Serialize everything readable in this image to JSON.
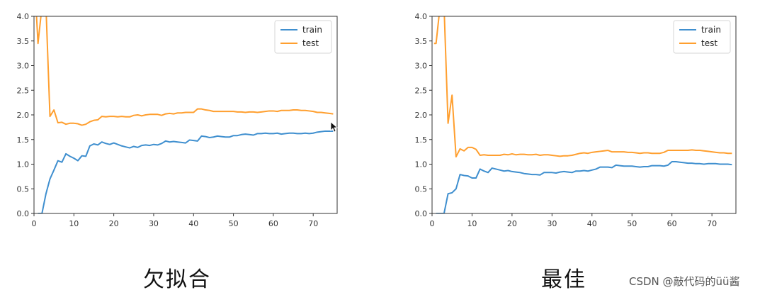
{
  "chart_data": [
    {
      "type": "line",
      "xlim": [
        0,
        76
      ],
      "ylim": [
        0,
        4.0
      ],
      "x_ticks": [
        0,
        10,
        20,
        30,
        40,
        50,
        60,
        70
      ],
      "y_ticks": [
        "0.0",
        "0.5",
        "1.0",
        "1.5",
        "2.0",
        "2.5",
        "3.0",
        "3.5",
        "4.0"
      ],
      "legend_position": "top-right",
      "caption": "欠拟合",
      "series": [
        {
          "name": "train",
          "color": "#3f8fcf",
          "x": [
            1,
            2,
            3,
            4,
            5,
            6,
            7,
            8,
            9,
            10,
            11,
            12,
            13,
            14,
            15,
            16,
            17,
            18,
            19,
            20,
            21,
            22,
            23,
            24,
            25,
            26,
            27,
            28,
            29,
            30,
            31,
            32,
            33,
            34,
            35,
            36,
            37,
            38,
            39,
            40,
            41,
            42,
            43,
            44,
            45,
            46,
            47,
            48,
            49,
            50,
            51,
            52,
            53,
            54,
            55,
            56,
            57,
            58,
            59,
            60,
            61,
            62,
            63,
            64,
            65,
            66,
            67,
            68,
            69,
            70,
            71,
            72,
            73,
            74,
            75
          ],
          "values": [
            0.0,
            0.0,
            0.4,
            0.7,
            0.88,
            1.07,
            1.04,
            1.21,
            1.16,
            1.12,
            1.07,
            1.17,
            1.16,
            1.37,
            1.41,
            1.39,
            1.45,
            1.42,
            1.4,
            1.43,
            1.4,
            1.37,
            1.35,
            1.33,
            1.36,
            1.34,
            1.38,
            1.39,
            1.38,
            1.4,
            1.39,
            1.42,
            1.47,
            1.45,
            1.46,
            1.45,
            1.44,
            1.43,
            1.49,
            1.48,
            1.47,
            1.57,
            1.56,
            1.54,
            1.55,
            1.57,
            1.56,
            1.55,
            1.55,
            1.58,
            1.58,
            1.6,
            1.61,
            1.6,
            1.59,
            1.62,
            1.62,
            1.63,
            1.62,
            1.62,
            1.63,
            1.61,
            1.62,
            1.63,
            1.63,
            1.62,
            1.62,
            1.63,
            1.62,
            1.63,
            1.65,
            1.66,
            1.67,
            1.67,
            1.67
          ]
        },
        {
          "name": "test",
          "color": "#ff9f2f",
          "x": [
            0.5,
            1,
            2,
            3,
            4,
            5,
            6,
            7,
            8,
            9,
            10,
            11,
            12,
            13,
            14,
            15,
            16,
            17,
            18,
            19,
            20,
            21,
            22,
            23,
            24,
            25,
            26,
            27,
            28,
            29,
            30,
            31,
            32,
            33,
            34,
            35,
            36,
            37,
            38,
            39,
            40,
            41,
            42,
            43,
            44,
            45,
            46,
            47,
            48,
            49,
            50,
            51,
            52,
            53,
            54,
            55,
            56,
            57,
            58,
            59,
            60,
            61,
            62,
            63,
            64,
            65,
            66,
            67,
            68,
            69,
            70,
            71,
            72,
            73,
            74,
            75
          ],
          "values": [
            4.2,
            3.45,
            4.2,
            4.2,
            1.97,
            2.1,
            1.84,
            1.85,
            1.81,
            1.83,
            1.83,
            1.82,
            1.79,
            1.81,
            1.86,
            1.89,
            1.9,
            1.97,
            1.96,
            1.97,
            1.97,
            1.96,
            1.97,
            1.96,
            1.96,
            1.99,
            2.0,
            1.98,
            2.0,
            2.01,
            2.01,
            2.01,
            1.99,
            2.02,
            2.03,
            2.02,
            2.04,
            2.04,
            2.05,
            2.05,
            2.05,
            2.12,
            2.12,
            2.1,
            2.09,
            2.07,
            2.07,
            2.07,
            2.07,
            2.07,
            2.07,
            2.06,
            2.06,
            2.05,
            2.06,
            2.06,
            2.05,
            2.06,
            2.07,
            2.08,
            2.08,
            2.07,
            2.09,
            2.09,
            2.09,
            2.1,
            2.1,
            2.09,
            2.09,
            2.08,
            2.07,
            2.05,
            2.05,
            2.04,
            2.03,
            2.02
          ]
        }
      ]
    },
    {
      "type": "line",
      "xlim": [
        0,
        76
      ],
      "ylim": [
        0,
        4.0
      ],
      "x_ticks": [
        0,
        10,
        20,
        30,
        40,
        50,
        60,
        70
      ],
      "y_ticks": [
        "0.0",
        "0.5",
        "1.0",
        "1.5",
        "2.0",
        "2.5",
        "3.0",
        "3.5",
        "4.0"
      ],
      "legend_position": "top-right",
      "caption": "最佳",
      "series": [
        {
          "name": "train",
          "color": "#3f8fcf",
          "x": [
            1,
            2,
            3,
            4,
            5,
            6,
            7,
            8,
            9,
            10,
            11,
            12,
            13,
            14,
            15,
            16,
            17,
            18,
            19,
            20,
            21,
            22,
            23,
            24,
            25,
            26,
            27,
            28,
            29,
            30,
            31,
            32,
            33,
            34,
            35,
            36,
            37,
            38,
            39,
            40,
            41,
            42,
            43,
            44,
            45,
            46,
            47,
            48,
            49,
            50,
            51,
            52,
            53,
            54,
            55,
            56,
            57,
            58,
            59,
            60,
            61,
            62,
            63,
            64,
            65,
            66,
            67,
            68,
            69,
            70,
            71,
            72,
            73,
            74,
            75
          ],
          "values": [
            0.0,
            0.0,
            0.0,
            0.4,
            0.42,
            0.5,
            0.79,
            0.77,
            0.76,
            0.72,
            0.72,
            0.9,
            0.86,
            0.83,
            0.92,
            0.9,
            0.88,
            0.86,
            0.87,
            0.85,
            0.84,
            0.83,
            0.81,
            0.8,
            0.79,
            0.79,
            0.78,
            0.83,
            0.83,
            0.83,
            0.82,
            0.84,
            0.85,
            0.84,
            0.83,
            0.86,
            0.86,
            0.87,
            0.86,
            0.88,
            0.9,
            0.94,
            0.94,
            0.94,
            0.93,
            0.98,
            0.97,
            0.96,
            0.96,
            0.96,
            0.95,
            0.94,
            0.95,
            0.95,
            0.97,
            0.97,
            0.97,
            0.96,
            0.98,
            1.05,
            1.05,
            1.04,
            1.03,
            1.02,
            1.02,
            1.01,
            1.01,
            1.0,
            1.01,
            1.01,
            1.01,
            1.0,
            1.0,
            1.0,
            0.99
          ]
        },
        {
          "name": "test",
          "color": "#ff9f2f",
          "x": [
            0.5,
            1,
            2,
            3,
            4,
            5,
            6,
            7,
            8,
            9,
            10,
            11,
            12,
            13,
            14,
            15,
            16,
            17,
            18,
            19,
            20,
            21,
            22,
            23,
            24,
            25,
            26,
            27,
            28,
            29,
            30,
            31,
            32,
            33,
            34,
            35,
            36,
            37,
            38,
            39,
            40,
            41,
            42,
            43,
            44,
            45,
            46,
            47,
            48,
            49,
            50,
            51,
            52,
            53,
            54,
            55,
            56,
            57,
            58,
            59,
            60,
            61,
            62,
            63,
            64,
            65,
            66,
            67,
            68,
            69,
            70,
            71,
            72,
            73,
            74,
            75
          ],
          "values": [
            3.45,
            3.45,
            4.2,
            4.2,
            1.83,
            2.4,
            1.15,
            1.31,
            1.27,
            1.34,
            1.34,
            1.3,
            1.18,
            1.19,
            1.18,
            1.18,
            1.18,
            1.18,
            1.2,
            1.19,
            1.21,
            1.19,
            1.2,
            1.2,
            1.19,
            1.19,
            1.2,
            1.18,
            1.19,
            1.19,
            1.18,
            1.17,
            1.16,
            1.17,
            1.17,
            1.18,
            1.2,
            1.22,
            1.23,
            1.22,
            1.24,
            1.25,
            1.26,
            1.27,
            1.28,
            1.25,
            1.25,
            1.25,
            1.25,
            1.24,
            1.24,
            1.23,
            1.22,
            1.23,
            1.23,
            1.22,
            1.22,
            1.22,
            1.24,
            1.28,
            1.28,
            1.28,
            1.28,
            1.28,
            1.28,
            1.29,
            1.28,
            1.28,
            1.27,
            1.26,
            1.25,
            1.24,
            1.23,
            1.23,
            1.22,
            1.22
          ]
        }
      ]
    }
  ],
  "watermark": "CSDN @敲代码的üü酱"
}
